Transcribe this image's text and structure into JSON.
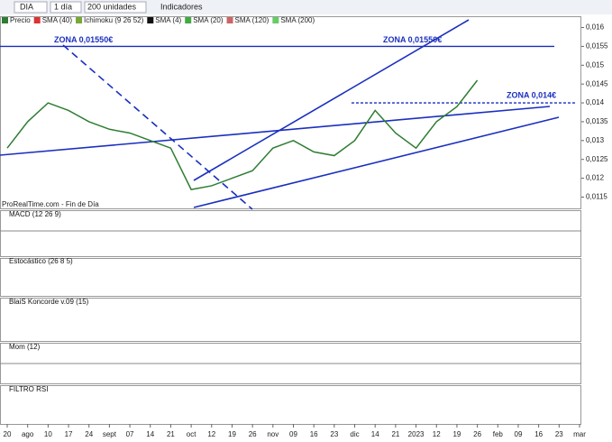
{
  "toolbar": {
    "symbol": "DIA",
    "period": "1 día",
    "units": "200 unidades",
    "indicators": "Indicadores"
  },
  "chart_data": {
    "type": "line",
    "legend": [
      "Precio",
      "SMA (40)",
      "Ichimoku (9 26 52)",
      "SMA (4)",
      "SMA (20)",
      "SMA (120)",
      "SMA (200)"
    ],
    "categories": [
      "20",
      "ago",
      "10",
      "17",
      "24",
      "sept",
      "07",
      "14",
      "21",
      "oct",
      "12",
      "19",
      "26",
      "nov",
      "09",
      "16",
      "23",
      "dic",
      "14",
      "21",
      "2023",
      "12",
      "19",
      "26",
      "feb",
      "09",
      "16",
      "23",
      "mar"
    ],
    "series": [
      {
        "name": "Precio",
        "color": "#2e7d32",
        "values": [
          0.0128,
          0.0135,
          0.014,
          0.0138,
          0.0135,
          0.0133,
          0.0132,
          0.013,
          0.0128,
          0.0117,
          0.0118,
          0.012,
          0.0122,
          0.0128,
          0.013,
          0.0127,
          0.0126,
          0.013,
          0.0138,
          0.0132,
          0.0128,
          0.0135,
          0.0139,
          0.0146,
          null,
          null,
          null,
          null,
          null
        ]
      }
    ],
    "ylim": [
      0.0112,
      0.0163
    ],
    "yticks": [
      {
        "value": 0.016,
        "label": "0,016"
      },
      {
        "value": 0.0155,
        "label": "0,0155"
      },
      {
        "value": 0.015,
        "label": "0,015"
      },
      {
        "value": 0.0145,
        "label": "0,0145"
      },
      {
        "value": 0.014,
        "label": "0,014"
      },
      {
        "value": 0.0135,
        "label": "0,0135"
      },
      {
        "value": 0.013,
        "label": "0,013"
      },
      {
        "value": 0.0125,
        "label": "0,0125"
      },
      {
        "value": 0.012,
        "label": "0,012"
      },
      {
        "value": 0.0115,
        "label": "0,0115"
      }
    ],
    "zones": [
      {
        "label": "ZONA 0,01550€",
        "value": 0.0155
      },
      {
        "label": "ZONA 0,01550€",
        "value": 0.0155
      },
      {
        "label": "ZONA 0,014€",
        "value": 0.014
      }
    ],
    "source": "ProRealTime.com - Fin de Día"
  },
  "panels": [
    "MACD (12 26 9)",
    "Estocástico (26 8 5)",
    "BlaiS Koncorde v.09 (15)",
    "Mom (12)",
    "FILTRO RSI"
  ]
}
